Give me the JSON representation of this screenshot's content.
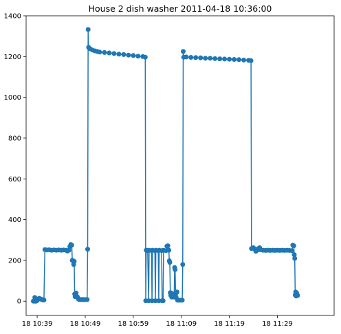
{
  "colors": {
    "series": "#1f77b4",
    "axis": "#000000",
    "background": "#ffffff"
  },
  "chart_data": {
    "type": "line",
    "title": "House 2 dish washer 2011-04-18 10:36:00",
    "xlabel": "",
    "ylabel": "",
    "grid": false,
    "legend": "none",
    "markers": "circle",
    "x_unit": "minutes past 10:36",
    "xlim": [
      36.7,
      100.8
    ],
    "ylim": [
      -70,
      1400
    ],
    "x_ticks": [
      {
        "value": 39,
        "label": "18 10:39"
      },
      {
        "value": 49,
        "label": "18 10:49"
      },
      {
        "value": 59,
        "label": "18 10:59"
      },
      {
        "value": 69,
        "label": "18 11:09"
      },
      {
        "value": 79,
        "label": "18 11:19"
      },
      {
        "value": 89,
        "label": "18 11:29"
      }
    ],
    "y_ticks": [
      0,
      200,
      400,
      600,
      800,
      1000,
      1200,
      1400
    ],
    "series": [
      {
        "points": [
          [
            38.2,
            0
          ],
          [
            38.4,
            0
          ],
          [
            38.5,
            18
          ],
          [
            38.6,
            0
          ],
          [
            38.8,
            0
          ],
          [
            39.0,
            4
          ],
          [
            39.2,
            10
          ],
          [
            39.4,
            14
          ],
          [
            39.6,
            12
          ],
          [
            39.8,
            10
          ],
          [
            40.0,
            8
          ],
          [
            40.2,
            6
          ],
          [
            40.4,
            6
          ],
          [
            40.6,
            253
          ],
          [
            41.0,
            251
          ],
          [
            41.5,
            252
          ],
          [
            42.0,
            250
          ],
          [
            42.5,
            251
          ],
          [
            43.0,
            250
          ],
          [
            43.5,
            251
          ],
          [
            44.0,
            250
          ],
          [
            44.5,
            251
          ],
          [
            45.0,
            250
          ],
          [
            45.3,
            246
          ],
          [
            45.6,
            250
          ],
          [
            45.8,
            268
          ],
          [
            46.0,
            278
          ],
          [
            46.2,
            275
          ],
          [
            46.3,
            200
          ],
          [
            46.5,
            198
          ],
          [
            46.6,
            180
          ],
          [
            46.7,
            195
          ],
          [
            46.8,
            35
          ],
          [
            46.9,
            22
          ],
          [
            47.1,
            40
          ],
          [
            47.2,
            25
          ],
          [
            47.4,
            20
          ],
          [
            47.6,
            10
          ],
          [
            47.8,
            8
          ],
          [
            48.0,
            8
          ],
          [
            48.2,
            8
          ],
          [
            48.4,
            8
          ],
          [
            48.6,
            8
          ],
          [
            48.8,
            8
          ],
          [
            49.0,
            8
          ],
          [
            49.4,
            8
          ],
          [
            49.5,
            255
          ],
          [
            49.6,
            1333
          ],
          [
            49.7,
            1245
          ],
          [
            50.0,
            1238
          ],
          [
            50.5,
            1232
          ],
          [
            51.0,
            1228
          ],
          [
            51.5,
            1225
          ],
          [
            52.0,
            1222
          ],
          [
            53.0,
            1220
          ],
          [
            54.0,
            1218
          ],
          [
            55.0,
            1215
          ],
          [
            56.0,
            1212
          ],
          [
            57.0,
            1210
          ],
          [
            58.0,
            1207
          ],
          [
            59.0,
            1205
          ],
          [
            60.0,
            1202
          ],
          [
            61.0,
            1200
          ],
          [
            61.5,
            1197
          ],
          [
            61.6,
            2
          ],
          [
            61.7,
            250
          ],
          [
            62.0,
            248
          ],
          [
            62.2,
            2
          ],
          [
            62.3,
            250
          ],
          [
            62.8,
            248
          ],
          [
            62.9,
            2
          ],
          [
            63.0,
            250
          ],
          [
            63.5,
            248
          ],
          [
            63.6,
            2
          ],
          [
            63.7,
            250
          ],
          [
            64.2,
            248
          ],
          [
            64.3,
            2
          ],
          [
            64.4,
            250
          ],
          [
            64.9,
            248
          ],
          [
            65.0,
            2
          ],
          [
            65.2,
            2
          ],
          [
            65.3,
            250
          ],
          [
            65.8,
            248
          ],
          [
            66.0,
            270
          ],
          [
            66.2,
            272
          ],
          [
            66.4,
            250
          ],
          [
            66.5,
            198
          ],
          [
            66.6,
            190
          ],
          [
            66.7,
            42
          ],
          [
            66.8,
            28
          ],
          [
            66.9,
            40
          ],
          [
            67.0,
            20
          ],
          [
            67.2,
            35
          ],
          [
            67.3,
            30
          ],
          [
            67.5,
            20
          ],
          [
            67.6,
            165
          ],
          [
            67.7,
            155
          ],
          [
            67.8,
            40
          ],
          [
            67.9,
            20
          ],
          [
            68.0,
            42
          ],
          [
            68.1,
            45
          ],
          [
            68.2,
            5
          ],
          [
            68.4,
            5
          ],
          [
            68.6,
            5
          ],
          [
            68.8,
            5
          ],
          [
            69.0,
            5
          ],
          [
            69.2,
            5
          ],
          [
            69.3,
            180
          ],
          [
            69.4,
            1225
          ],
          [
            69.5,
            1197
          ],
          [
            70.0,
            1198
          ],
          [
            71.0,
            1196
          ],
          [
            72.0,
            1195
          ],
          [
            73.0,
            1194
          ],
          [
            74.0,
            1192
          ],
          [
            75.0,
            1192
          ],
          [
            76.0,
            1190
          ],
          [
            77.0,
            1189
          ],
          [
            78.0,
            1188
          ],
          [
            79.0,
            1187
          ],
          [
            80.0,
            1186
          ],
          [
            81.0,
            1185
          ],
          [
            82.0,
            1183
          ],
          [
            83.0,
            1182
          ],
          [
            83.5,
            1180
          ],
          [
            83.6,
            258
          ],
          [
            84.0,
            262
          ],
          [
            84.3,
            255
          ],
          [
            84.5,
            245
          ],
          [
            84.8,
            250
          ],
          [
            85.0,
            258
          ],
          [
            85.3,
            262
          ],
          [
            85.5,
            252
          ],
          [
            86.0,
            250
          ],
          [
            86.5,
            249
          ],
          [
            87.0,
            250
          ],
          [
            87.5,
            249
          ],
          [
            88.0,
            250
          ],
          [
            88.5,
            249
          ],
          [
            89.0,
            250
          ],
          [
            89.5,
            249
          ],
          [
            90.0,
            250
          ],
          [
            90.5,
            249
          ],
          [
            91.0,
            250
          ],
          [
            91.5,
            249
          ],
          [
            92.0,
            248
          ],
          [
            92.2,
            275
          ],
          [
            92.4,
            272
          ],
          [
            92.5,
            228
          ],
          [
            92.6,
            210
          ],
          [
            92.7,
            30
          ],
          [
            92.8,
            45
          ],
          [
            92.9,
            25
          ],
          [
            93.0,
            40
          ],
          [
            93.2,
            28
          ]
        ]
      }
    ]
  }
}
